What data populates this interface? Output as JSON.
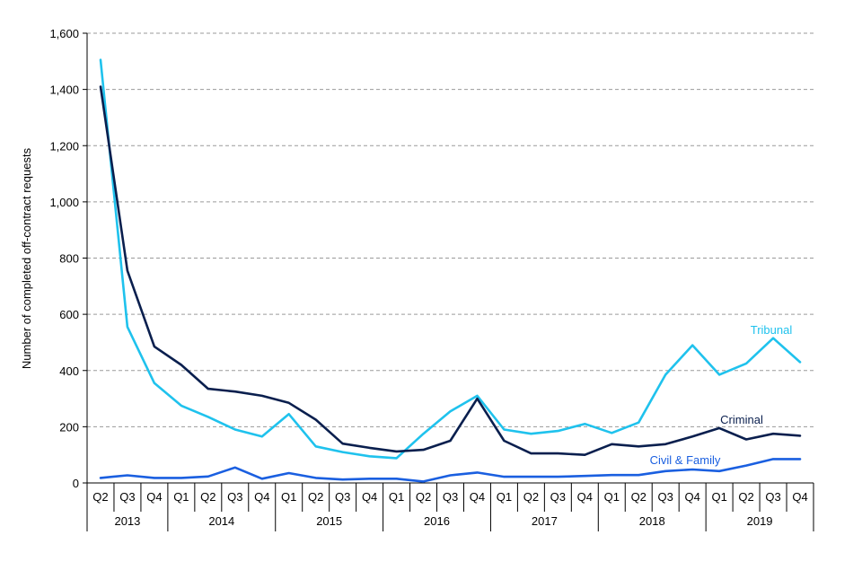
{
  "chart_data": {
    "type": "line",
    "ylabel": "Number of completed off-contract requests",
    "ylim": [
      0,
      1600
    ],
    "yticks": [
      0,
      200,
      400,
      600,
      800,
      1000,
      1200,
      1400,
      1600
    ],
    "ytick_labels": [
      "0",
      "200",
      "400",
      "600",
      "800",
      "1,000",
      "1,200",
      "1,400",
      "1,600"
    ],
    "grid": true,
    "x": [
      "Q2",
      "Q3",
      "Q4",
      "Q1",
      "Q2",
      "Q3",
      "Q4",
      "Q1",
      "Q2",
      "Q3",
      "Q4",
      "Q1",
      "Q2",
      "Q3",
      "Q4",
      "Q1",
      "Q2",
      "Q3",
      "Q4",
      "Q1",
      "Q2",
      "Q3",
      "Q4",
      "Q1",
      "Q2",
      "Q3",
      "Q4"
    ],
    "years": [
      {
        "label": "2013",
        "count": 3
      },
      {
        "label": "2014",
        "count": 4
      },
      {
        "label": "2015",
        "count": 4
      },
      {
        "label": "2016",
        "count": 4
      },
      {
        "label": "2017",
        "count": 4
      },
      {
        "label": "2018",
        "count": 4
      },
      {
        "label": "2019",
        "count": 4
      }
    ],
    "series": [
      {
        "name": "Tribunal",
        "color": "#1fc2ed",
        "values": [
          1505,
          555,
          355,
          275,
          235,
          190,
          165,
          245,
          130,
          110,
          95,
          88,
          175,
          255,
          310,
          190,
          175,
          185,
          210,
          178,
          215,
          385,
          490,
          385,
          425,
          515,
          430
        ]
      },
      {
        "name": "Criminal",
        "color": "#0a1f4e",
        "values": [
          1410,
          755,
          485,
          420,
          335,
          325,
          310,
          285,
          225,
          140,
          125,
          112,
          118,
          150,
          300,
          150,
          105,
          105,
          100,
          138,
          130,
          138,
          165,
          195,
          155,
          175,
          168
        ]
      },
      {
        "name": "Civil & Family",
        "color": "#1a5fe0",
        "values": [
          18,
          27,
          18,
          18,
          23,
          55,
          15,
          35,
          18,
          12,
          15,
          15,
          5,
          27,
          37,
          22,
          22,
          22,
          25,
          28,
          28,
          42,
          48,
          42,
          62,
          85,
          85
        ]
      }
    ]
  }
}
